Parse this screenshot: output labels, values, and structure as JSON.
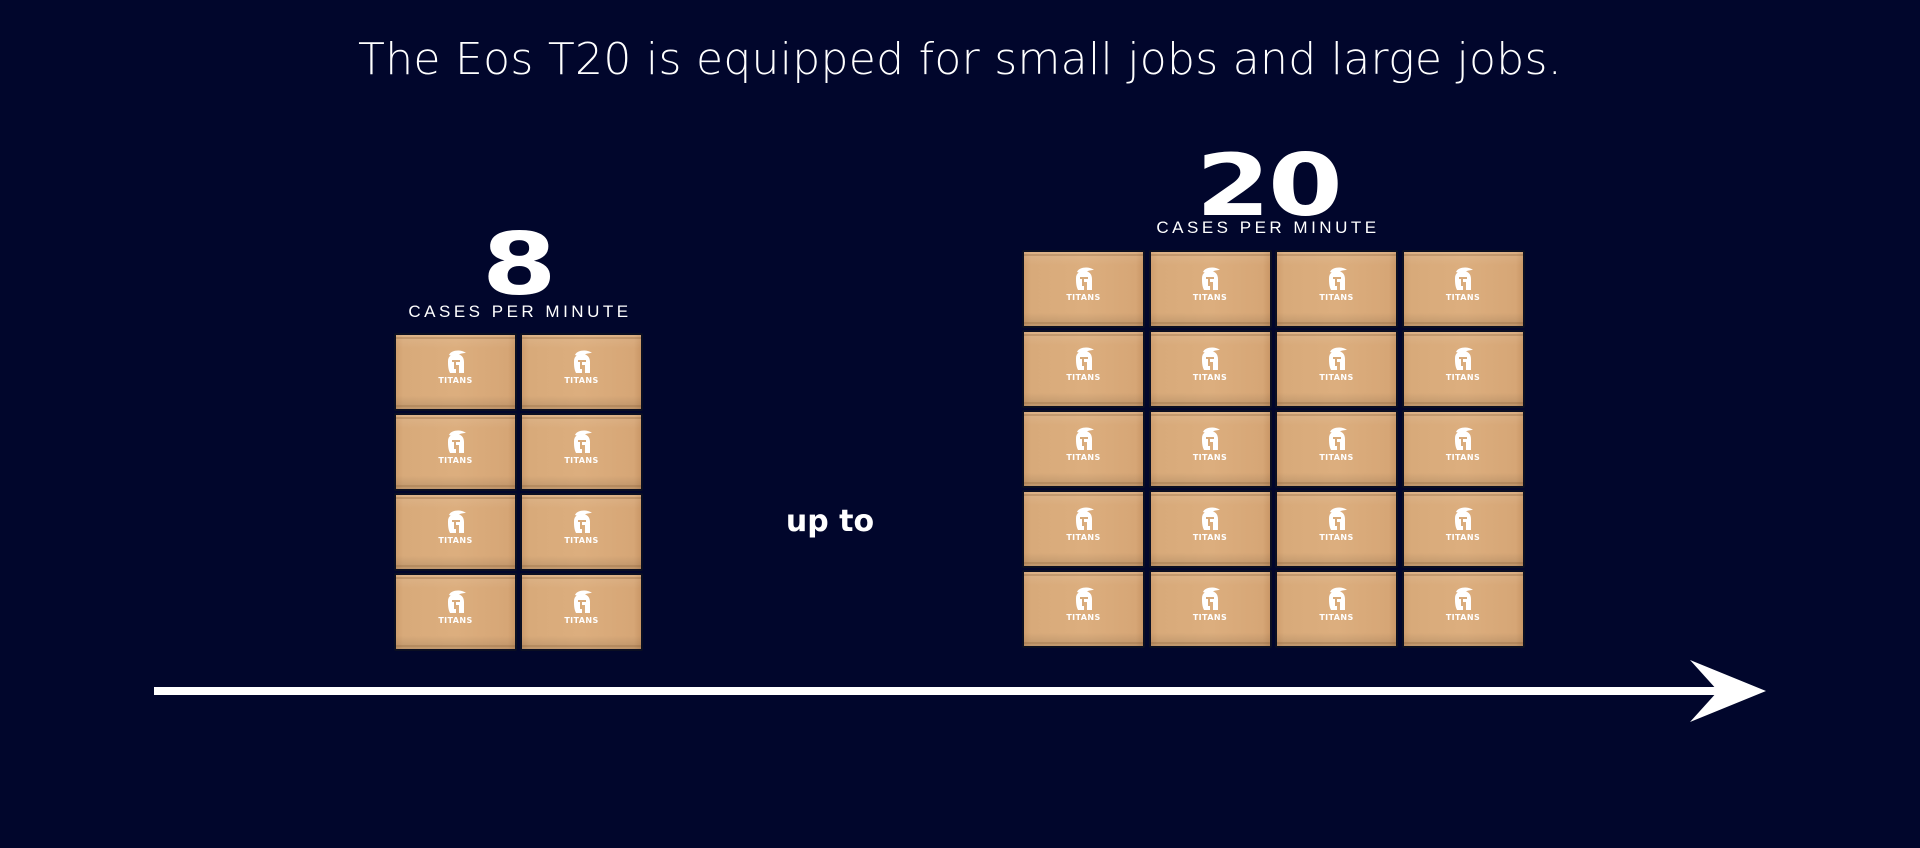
{
  "headline": "The Eos T20 is equipped for small jobs and large jobs.",
  "connector_text": "up to",
  "accent_color": "#01062c",
  "box_color": "#d8aa7a",
  "logo_text": "TITANS",
  "logo_icon": "spartan-helmet-icon",
  "small_job": {
    "rate": "8",
    "unit": "CASES PER MINUTE",
    "box_count": 8,
    "columns": 2,
    "rows": 4
  },
  "large_job": {
    "rate": "20",
    "unit": "CASES PER MINUTE",
    "box_count": 20,
    "columns": 4,
    "rows": 5
  },
  "arrow_icon": "arrow-right-icon"
}
